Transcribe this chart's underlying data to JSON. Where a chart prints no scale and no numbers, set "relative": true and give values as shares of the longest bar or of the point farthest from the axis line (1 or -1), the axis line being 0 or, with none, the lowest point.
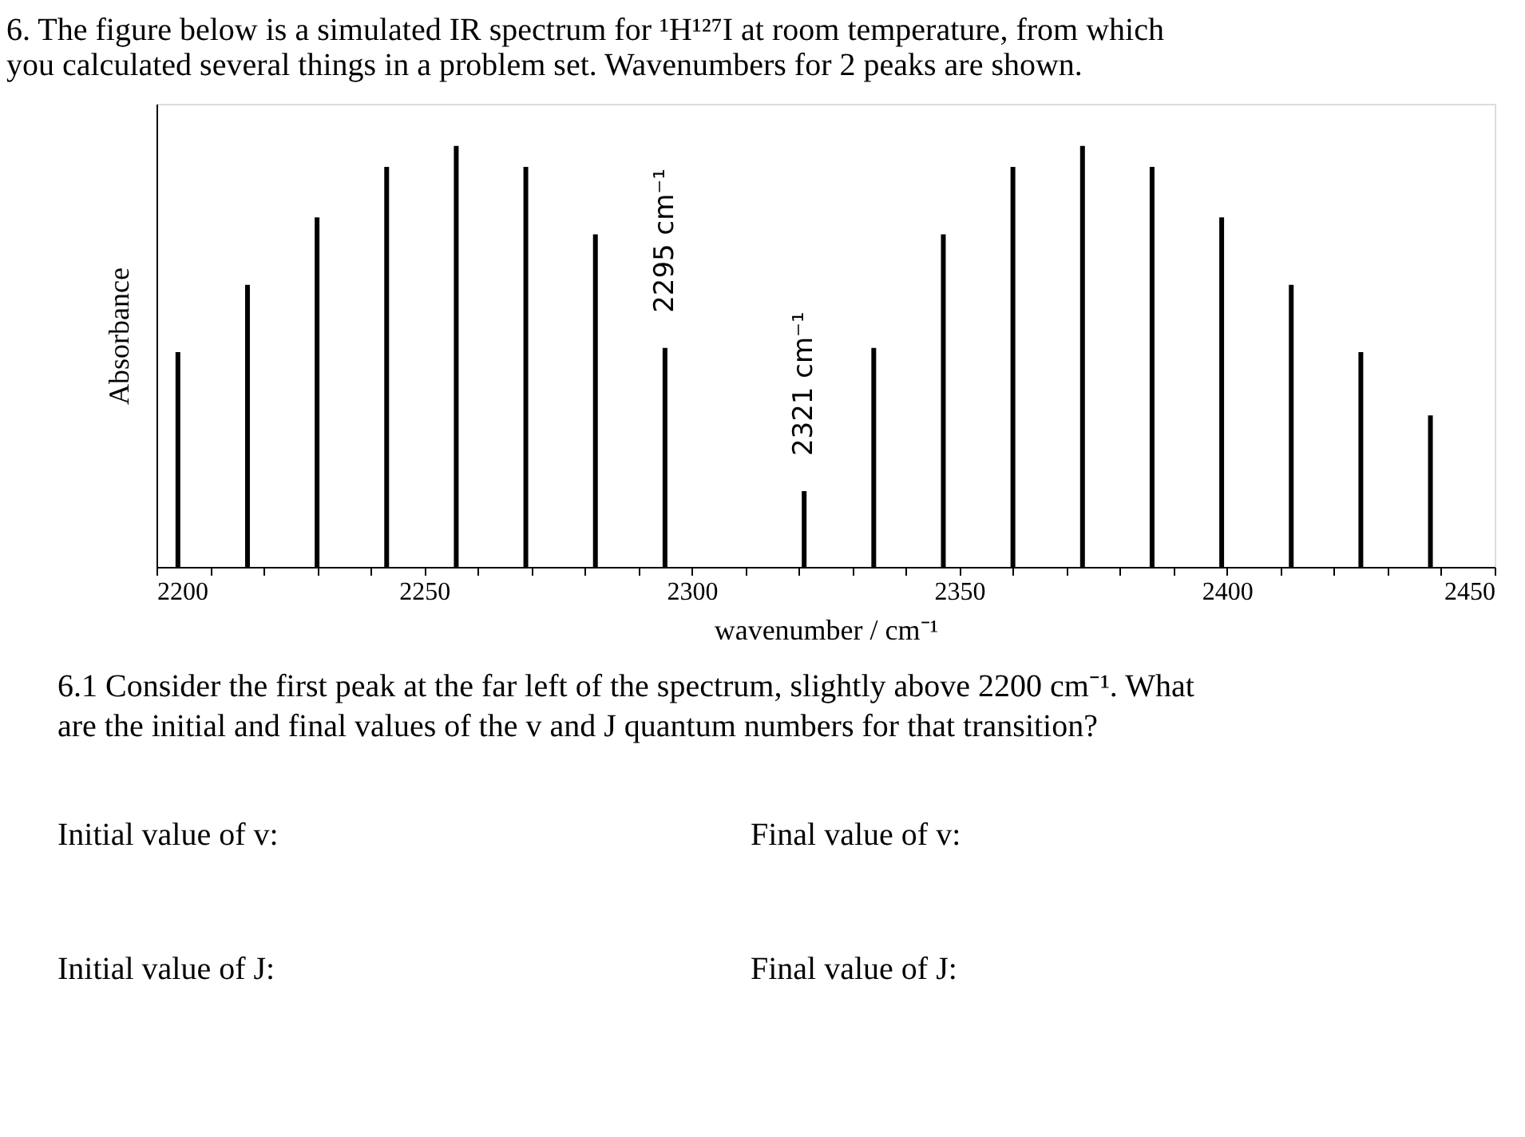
{
  "chart_data": {
    "type": "bar",
    "relative": true,
    "title": "6. The figure below is a simulated IR spectrum for ¹H¹²⁷I at room temperature, from which you calculated several things in a problem set. Wavenumbers for 2 peaks are shown.",
    "xlabel": "wavenumber / cm⁻¹",
    "ylabel": "Absorbance",
    "x": [
      2204,
      2217,
      2230,
      2243,
      2256,
      2269,
      2282,
      2295,
      2321,
      2334,
      2347,
      2360,
      2373,
      2386,
      2399,
      2412,
      2425,
      2438
    ],
    "values": [
      0.51,
      0.67,
      0.83,
      0.95,
      1.0,
      0.95,
      0.79,
      0.52,
      0.18,
      0.52,
      0.79,
      0.95,
      1.0,
      0.95,
      0.83,
      0.67,
      0.51,
      0.36
    ],
    "color": "#000000",
    "xlim": [
      2200,
      2450
    ],
    "xticks": [
      2200,
      {
        "value": 2210,
        "label": null
      },
      {
        "value": 2220,
        "label": null
      },
      {
        "value": 2230,
        "label": null
      },
      {
        "value": 2240,
        "label": null
      },
      2250,
      {
        "value": 2260,
        "label": null
      },
      {
        "value": 2270,
        "label": null
      },
      {
        "value": 2280,
        "label": null
      },
      {
        "value": 2290,
        "label": null
      },
      2300,
      {
        "value": 2310,
        "label": null
      },
      {
        "value": 2320,
        "label": null
      },
      {
        "value": 2330,
        "label": null
      },
      {
        "value": 2340,
        "label": null
      },
      2350,
      {
        "value": 2360,
        "label": null
      },
      {
        "value": 2370,
        "label": null
      },
      {
        "value": 2380,
        "label": null
      },
      {
        "value": 2390,
        "label": null
      },
      2400,
      {
        "value": 2410,
        "label": null
      },
      {
        "value": 2420,
        "label": null
      },
      {
        "value": 2430,
        "label": null
      },
      {
        "value": 2440,
        "label": null
      },
      2450
    ],
    "grid": false,
    "annotations": [
      {
        "text": "2295 cm⁻¹",
        "x": 2295,
        "y": 0.52
      },
      {
        "text": "2321 cm⁻¹",
        "x": 2321,
        "y": 0.18
      },
      "6.1 Consider the first peak at the far left of the spectrum, slightly above 2200 cm⁻¹. What are the initial and final values of the v and J quantum numbers for that transition?",
      "Initial value of v:",
      "Final value of v:",
      "Initial value of J:",
      "Final value of J:"
    ]
  }
}
